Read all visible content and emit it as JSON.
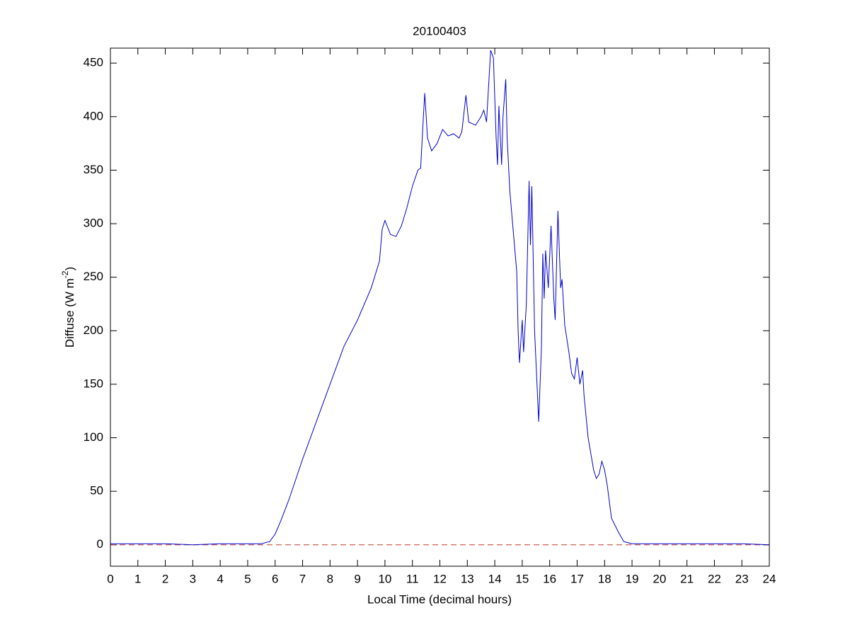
{
  "chart_data": {
    "type": "line",
    "title": "20100403",
    "xlabel": "Local Time (decimal hours)",
    "ylabel": [
      "Diffuse (W m",
      "-2",
      ")"
    ],
    "xlim": [
      0,
      24
    ],
    "xticks": [
      0,
      1,
      2,
      3,
      4,
      5,
      6,
      7,
      8,
      9,
      10,
      11,
      12,
      13,
      14,
      15,
      16,
      17,
      18,
      19,
      20,
      21,
      22,
      23,
      24
    ],
    "ylim": [
      -20,
      464
    ],
    "yticks": [
      0,
      50,
      100,
      150,
      200,
      250,
      300,
      350,
      400,
      450
    ],
    "grid": false,
    "reference_line": {
      "value": 0,
      "color": "#c0392b"
    },
    "series": [
      {
        "name": "Diffuse",
        "color": "#0000cc",
        "x": [
          0,
          1,
          2,
          3,
          4,
          5,
          5.5,
          5.8,
          6.0,
          6.2,
          6.5,
          7,
          7.5,
          8,
          8.5,
          9,
          9.5,
          9.8,
          9.9,
          10.0,
          10.2,
          10.4,
          10.6,
          10.8,
          11.0,
          11.2,
          11.3,
          11.4,
          11.45,
          11.55,
          11.7,
          11.9,
          12.1,
          12.3,
          12.5,
          12.7,
          12.8,
          12.95,
          13.05,
          13.3,
          13.5,
          13.6,
          13.7,
          13.85,
          13.95,
          14.05,
          14.1,
          14.15,
          14.25,
          14.3,
          14.4,
          14.45,
          14.55,
          14.65,
          14.8,
          14.85,
          14.9,
          15.0,
          15.05,
          15.15,
          15.25,
          15.3,
          15.35,
          15.45,
          15.6,
          15.7,
          15.75,
          15.8,
          15.85,
          15.95,
          16.05,
          16.15,
          16.2,
          16.3,
          16.4,
          16.45,
          16.55,
          16.7,
          16.8,
          16.9,
          17.0,
          17.1,
          17.2,
          17.25,
          17.4,
          17.6,
          17.7,
          17.8,
          17.9,
          18.0,
          18.1,
          18.25,
          18.5,
          18.7,
          19,
          20,
          21,
          22,
          23,
          24
        ],
        "values": [
          1,
          1,
          1,
          0,
          1,
          1,
          1,
          3,
          10,
          22,
          42,
          80,
          115,
          150,
          185,
          210,
          240,
          265,
          295,
          303,
          290,
          288,
          298,
          315,
          335,
          350,
          352,
          400,
          422,
          380,
          368,
          375,
          388,
          382,
          384,
          380,
          386,
          420,
          395,
          392,
          400,
          406,
          395,
          462,
          455,
          380,
          355,
          410,
          355,
          400,
          435,
          380,
          330,
          300,
          255,
          200,
          170,
          210,
          180,
          225,
          340,
          280,
          335,
          200,
          115,
          185,
          272,
          230,
          275,
          240,
          298,
          230,
          210,
          312,
          240,
          248,
          205,
          180,
          160,
          155,
          175,
          150,
          163,
          140,
          100,
          70,
          62,
          66,
          78,
          70,
          55,
          25,
          12,
          3,
          1,
          1,
          1,
          1,
          1,
          0
        ]
      }
    ]
  }
}
